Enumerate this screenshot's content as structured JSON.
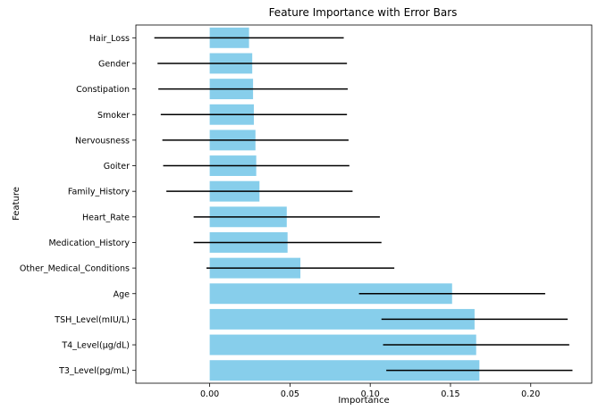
{
  "chart_data": {
    "type": "bar",
    "orientation": "horizontal",
    "title": "Feature Importance with Error Bars",
    "xlabel": "Importance",
    "ylabel": "Feature",
    "xlim": [
      -0.046,
      0.238
    ],
    "xticks": [
      "0.00",
      "0.05",
      "0.10",
      "0.15",
      "0.20"
    ],
    "grid": false,
    "bar_color": "#87CEEB",
    "errorbar_color": "#000000",
    "categories": [
      "Hair_Loss",
      "Gender",
      "Constipation",
      "Smoker",
      "Nervousness",
      "Goiter",
      "Family_History",
      "Heart_Rate",
      "Medication_History",
      "Other_Medical_Conditions",
      "Age",
      "TSH_Level(mIU/L)",
      "T4_Level(µg/dL)",
      "T3_Level(pg/mL)"
    ],
    "values": [
      0.0245,
      0.0265,
      0.027,
      0.0275,
      0.0285,
      0.029,
      0.031,
      0.048,
      0.0485,
      0.0565,
      0.151,
      0.165,
      0.166,
      0.168
    ],
    "errors": [
      0.059,
      0.059,
      0.059,
      0.058,
      0.058,
      0.058,
      0.058,
      0.058,
      0.0585,
      0.0585,
      0.058,
      0.058,
      0.058,
      0.058
    ]
  }
}
